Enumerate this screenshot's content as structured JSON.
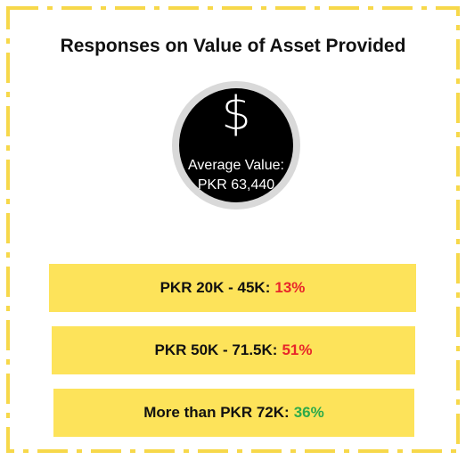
{
  "title": "Responses on Value of Asset Provided",
  "icon": "$",
  "average": {
    "label": "Average Value:",
    "value": "PKR 63,440"
  },
  "items": [
    {
      "label": "PKR 20K - 45K:",
      "percent": "13%",
      "color": "#e8262a"
    },
    {
      "label": "PKR 50K - 71.5K:",
      "percent": "51%",
      "color": "#e8262a"
    },
    {
      "label": "More than PKR 72K:",
      "percent": "36%",
      "color": "#2eaa4a"
    }
  ]
}
